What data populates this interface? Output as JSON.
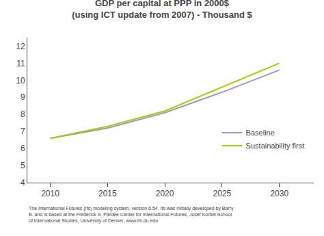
{
  "chart_data": {
    "type": "line",
    "title": "GDP per capital at PPP in 2000$\n(using ICT update from 2007) - Thousand $",
    "x": [
      2010,
      2015,
      2020,
      2025,
      2030
    ],
    "series": [
      {
        "name": "Baseline",
        "color": "#9999cc",
        "values": [
          6.6,
          7.2,
          8.1,
          9.3,
          10.6
        ]
      },
      {
        "name": "Sustainability first",
        "color": "#aacc00",
        "values": [
          6.6,
          7.3,
          8.2,
          9.6,
          11.0
        ]
      }
    ],
    "xlim": [
      2008,
      2033
    ],
    "ylim": [
      4,
      12.5
    ],
    "xticks": [
      2010,
      2015,
      2020,
      2025,
      2030
    ],
    "yticks": [
      4,
      5,
      6,
      7,
      8,
      9,
      10,
      11,
      12
    ],
    "grid": false,
    "legend": "right",
    "annotations": [
      "The International Futures (Ifs) modeling system, version 6.54. Ifs was initially developed by Barry\nB. and is based at the Frederick S. Pardee Center for International Futures, Josef Korbel School\nof International Studies, University of Denver, www.ifs.du.edu"
    ]
  }
}
